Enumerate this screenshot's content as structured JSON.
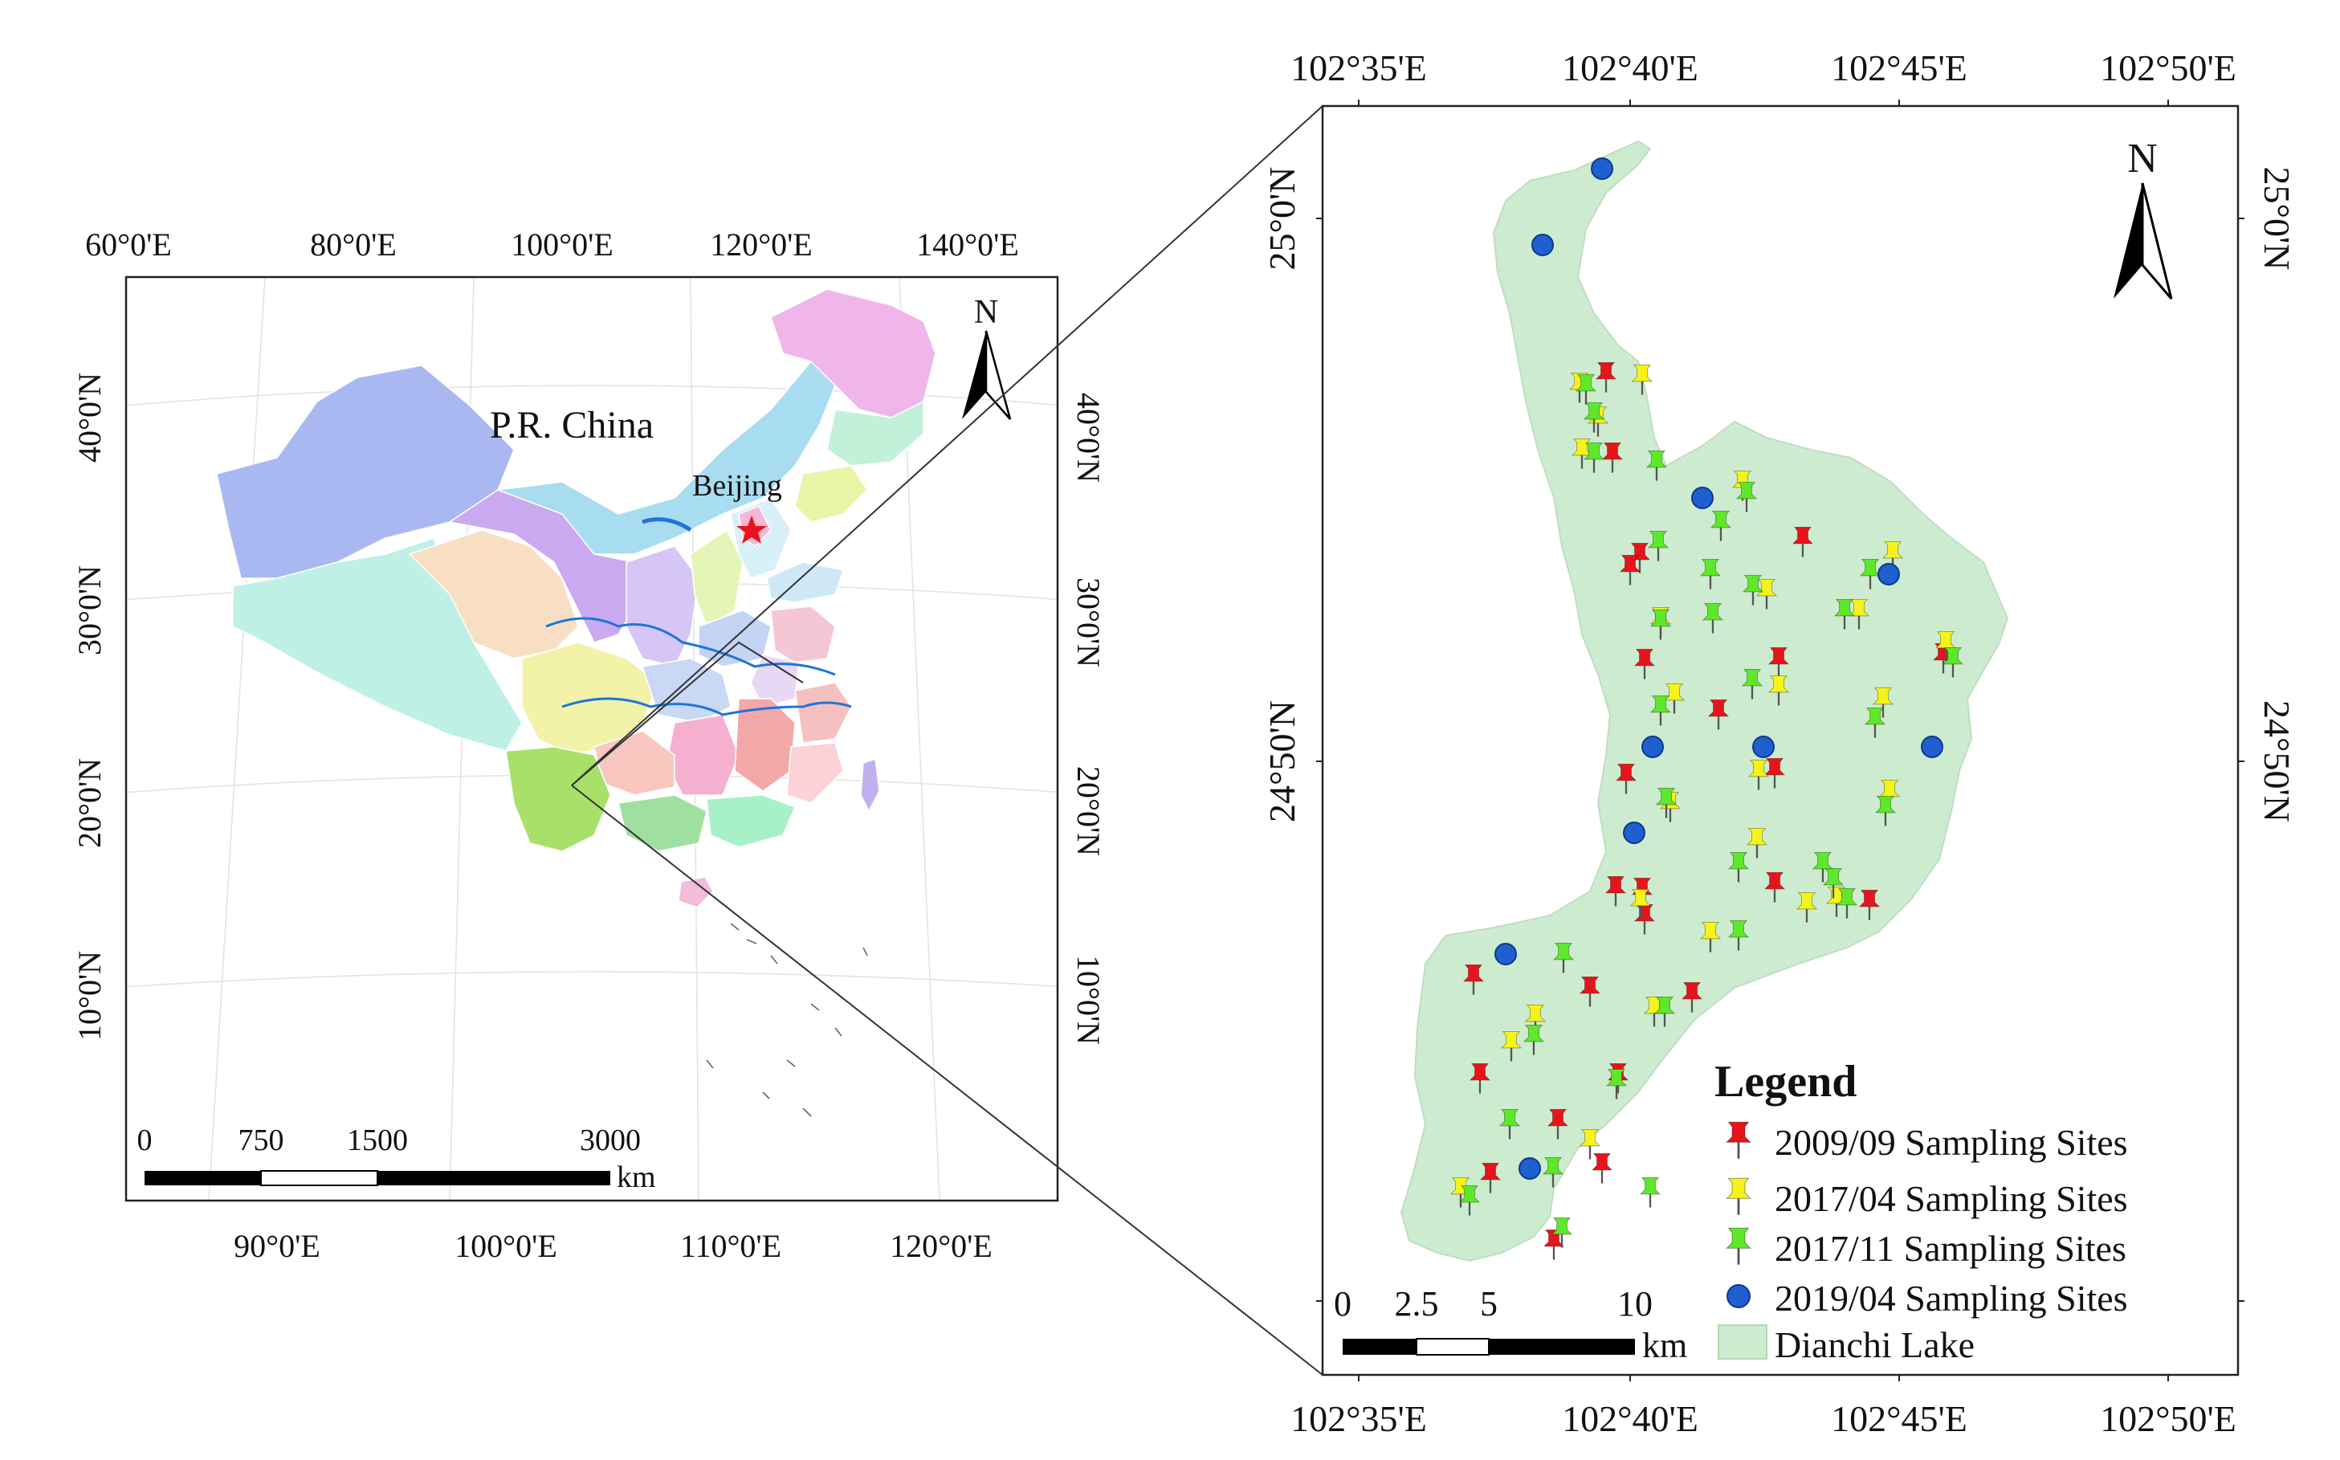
{
  "china_map": {
    "top_lon_labels": [
      "60°0'E",
      "80°0'E",
      "100°0'E",
      "120°0'E",
      "140°0'E"
    ],
    "bottom_lon_labels": [
      "90°0'E",
      "100°0'E",
      "110°0'E",
      "120°0'E"
    ],
    "left_lat_labels": [
      "40°0'N",
      "30°0'N",
      "20°0'N",
      "10°0'N"
    ],
    "right_lat_labels": [
      "40°0'N",
      "30°0'N",
      "20°0'N",
      "10°0'N"
    ],
    "country_label": "P.R. China",
    "capital_label": "Beijing",
    "north_label": "N",
    "scale_ticks": [
      "0",
      "750",
      "1500",
      "3000"
    ],
    "scale_unit": "km",
    "capital_marker_color": "#e8141b"
  },
  "lake_map": {
    "top_lon_labels": [
      "102°35'E",
      "102°40'E",
      "102°45'E",
      "102°50'E"
    ],
    "bottom_lon_labels": [
      "102°35'E",
      "102°40'E",
      "102°45'E",
      "102°50'E"
    ],
    "left_lat_labels": [
      "25°0'N",
      "24°50'N"
    ],
    "right_lat_labels": [
      "25°0'N",
      "24°50'N"
    ],
    "north_label": "N",
    "scale_ticks": [
      "0",
      "2.5",
      "5",
      "10"
    ],
    "scale_unit": "km",
    "lake_color": "#cdeccf"
  },
  "legend": {
    "title": "Legend",
    "items": [
      {
        "label": "2009/09 Sampling Sites",
        "color": "#e8141b",
        "icon": "pushpin-red-icon"
      },
      {
        "label": "2017/04 Sampling Sites",
        "color": "#f5f31a",
        "icon": "pushpin-yellow-icon"
      },
      {
        "label": "2017/11 Sampling Sites",
        "color": "#5ee82a",
        "icon": "pushpin-green-icon"
      },
      {
        "label": "2019/04 Sampling Sites",
        "color": "#1f5fd0",
        "icon": "circle-blue-icon"
      }
    ],
    "lake_label": "Dianchi Lake"
  }
}
